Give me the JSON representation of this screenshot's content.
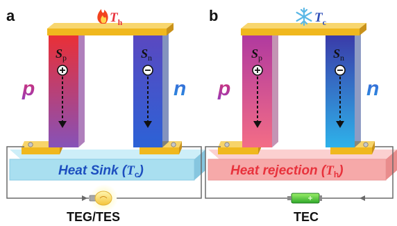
{
  "colors": {
    "p_leg_top": "#e8323c",
    "p_leg_bottom": "#8a4fb8",
    "n_leg_top": "#5b4fc4",
    "n_leg_bottom": "#2b62d8",
    "tec_p_leg_top": "#b23aa8",
    "tec_p_leg_bottom": "#f07088",
    "tec_n_leg_top": "#3b3fae",
    "tec_n_leg_bottom": "#2fb0e8",
    "electrode": "#f0b81e",
    "heat_sink": "#a9dff0",
    "heat_rejection": "#f6a9a9",
    "p_label": "#b8288c",
    "n_label": "#2f6fd6",
    "heat_sink_text": "#1d4fbf",
    "heat_rejection_text": "#e8323c"
  },
  "panel_a": {
    "label": "a",
    "top_symbol": "T",
    "top_subscript": "h",
    "top_icon": "flame-icon",
    "p_leg_symbol": "S",
    "p_leg_subscript": "p",
    "n_leg_symbol": "S",
    "n_leg_subscript": "n",
    "p_label": "p",
    "n_label": "n",
    "base_text_main": "Heat Sink (",
    "base_text_symbol": "T",
    "base_text_subscript": "c",
    "base_text_close": ")",
    "device_icon": "light-bulb-icon",
    "caption": "TEG/TES"
  },
  "panel_b": {
    "label": "b",
    "top_symbol": "T",
    "top_subscript": "c",
    "top_icon": "snowflake-icon",
    "p_leg_symbol": "S",
    "p_leg_subscript": "p",
    "n_leg_symbol": "S",
    "n_leg_subscript": "n",
    "p_label": "p",
    "n_label": "n",
    "base_text_main": "Heat rejection (",
    "base_text_symbol": "T",
    "base_text_subscript": "h",
    "base_text_close": ")",
    "device_icon": "battery-icon",
    "caption": "TEC"
  }
}
